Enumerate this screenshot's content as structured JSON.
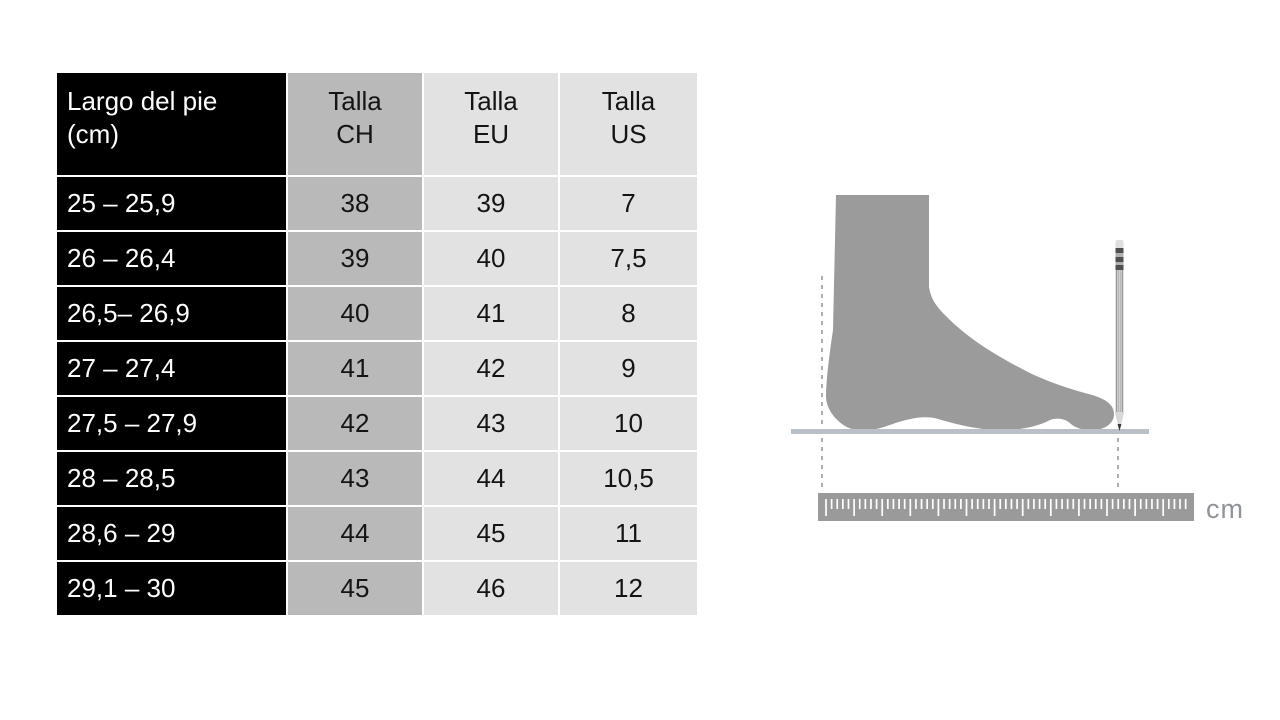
{
  "table": {
    "headers": [
      {
        "id": "foot_length",
        "label": "Largo del pie\n(cm)"
      },
      {
        "id": "talla_ch",
        "label": "Talla\nCH"
      },
      {
        "id": "talla_eu",
        "label": "Talla\nEU"
      },
      {
        "id": "talla_us",
        "label": "Talla\nUS"
      }
    ],
    "rows": [
      [
        "25 – 25,9",
        "38",
        "39",
        "7"
      ],
      [
        "26 – 26,4",
        "39",
        "40",
        "7,5"
      ],
      [
        "26,5– 26,9",
        "40",
        "41",
        "8"
      ],
      [
        "27 – 27,4",
        "41",
        "42",
        "9"
      ],
      [
        "27,5 – 27,9",
        "42",
        "43",
        "10"
      ],
      [
        "28 – 28,5",
        "43",
        "44",
        "10,5"
      ],
      [
        "28,6 – 29",
        "44",
        "45",
        "11"
      ],
      [
        "29,1 – 30",
        "45",
        "46",
        "12"
      ]
    ],
    "colors": {
      "range_column_bg": "#000000",
      "range_column_text": "#ffffff",
      "ch_column_bg": "#b9b9b9",
      "eu_column_bg": "#e2e2e2",
      "us_column_bg": "#e2e2e2",
      "gridline": "#ffffff",
      "value_text": "#141414"
    }
  },
  "illustration": {
    "ruler_unit_label": "cm",
    "colors": {
      "foot": "#9b9b9b",
      "ruler": "#9a9a9a",
      "tick": "#ffffff",
      "baseline": "#b9c0c8",
      "dashed_line": "#a6a6a6",
      "unit_text": "#90949a",
      "pencil_body": "#cfcfcf",
      "pencil_edge": "#8f8f8f",
      "pencil_eraser": "#dedede",
      "pencil_band_dark": "#4f4f4f",
      "pencil_band_light": "#b0b0b0",
      "pencil_tip": "#d8d8d8",
      "pencil_lead": "#333333"
    }
  }
}
